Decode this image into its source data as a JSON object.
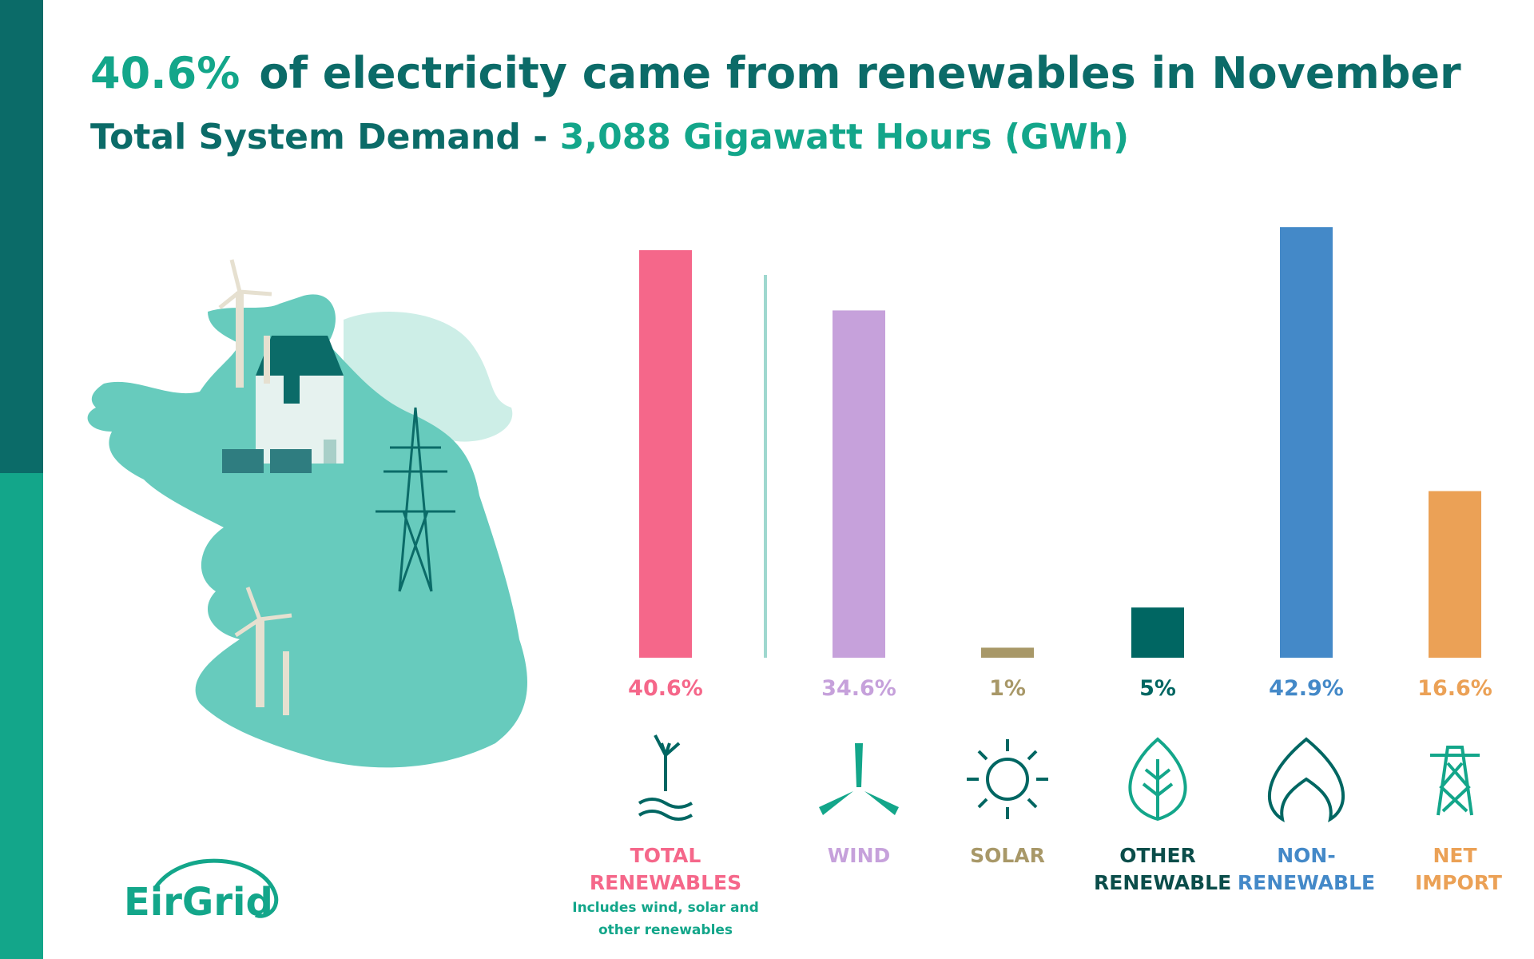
{
  "header": {
    "title_highlight": "40.6%",
    "title": "of electricity came from renewables in November",
    "subtitle": "Total System Demand - ",
    "subtitle_highlight": "3,088 Gigawatt Hours (GWh)"
  },
  "logo": "EirGrid",
  "chart_data": {
    "type": "bar",
    "categories": [
      "TOTAL RENEWABLES",
      "WIND",
      "SOLAR",
      "OTHER RENEWABLE",
      "NON-RENEWABLE",
      "NET IMPORT"
    ],
    "values": [
      40.6,
      34.6,
      1,
      5,
      42.9,
      16.6
    ],
    "value_labels": [
      "40.6%",
      "34.6%",
      "1%",
      "5%",
      "42.9%",
      "16.6%"
    ],
    "colors": [
      "#f5678a",
      "#c6a1db",
      "#a89868",
      "#006662",
      "#4489c8",
      "#eba156"
    ],
    "note": "Includes wind, solar and other renewables"
  }
}
